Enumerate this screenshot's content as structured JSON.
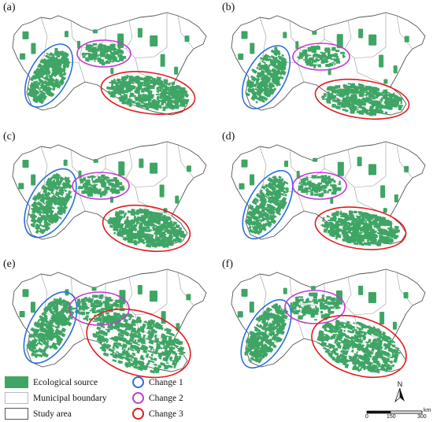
{
  "panels": [
    {
      "label": "(a)"
    },
    {
      "label": "(b)"
    },
    {
      "label": "(c)"
    },
    {
      "label": "(d)"
    },
    {
      "label": "(e)"
    },
    {
      "label": "(f)"
    }
  ],
  "legend": {
    "ecological_source": "Ecological source",
    "municipal_boundary": "Municipal boundary",
    "study_area": "Study area",
    "change1": "Change 1",
    "change2": "Change 2",
    "change3": "Change 3"
  },
  "colors": {
    "ecological": "#3fa565",
    "change1": "#2a6fd6",
    "change2": "#c13cd0",
    "change3": "#e01c1c",
    "boundary": "#9a9a9a"
  },
  "north_label": "N",
  "scale": {
    "ticks": [
      "0",
      "150",
      "300"
    ],
    "unit": "km"
  }
}
